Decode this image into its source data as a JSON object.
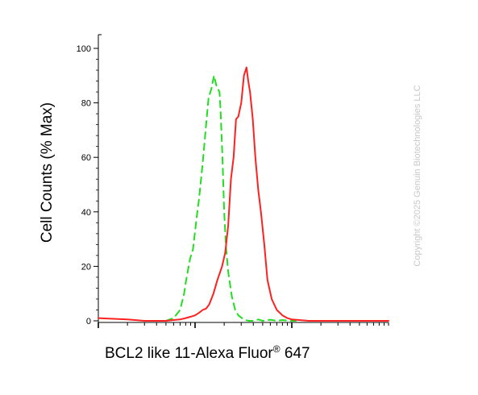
{
  "chart_data": {
    "type": "line",
    "title": "",
    "xlabel": "BCL2 like 11-Alexa Fluor",
    "xlabel_sup": "®",
    "xlabel_tail": " 647",
    "ylabel": "Cell Counts (% Max)",
    "x_scale": "log",
    "ylim": [
      0,
      100
    ],
    "y_ticks": [
      "0",
      "20",
      "40",
      "60",
      "80",
      "100"
    ],
    "y_tick_values": [
      0,
      20,
      40,
      60,
      80,
      100
    ],
    "grid": false,
    "legend": "none",
    "series": [
      {
        "style": "dashed",
        "color": "#22dd22",
        "x": [
          5.0,
          6.0,
          7.0,
          7.7,
          8.0,
          8.9,
          9.5,
          10.4,
          11.0,
          12.0,
          13.0,
          13.8,
          14.7,
          15.7,
          16.7,
          17.9,
          18.3,
          19.2,
          20.0,
          20.9,
          22.0,
          24.0,
          26.0,
          28.0,
          30.5,
          33.0,
          36.0,
          40.0,
          45.0,
          50.0,
          60.0,
          70.0,
          80.0,
          95.0,
          110.0
        ],
        "y": [
          0,
          1,
          4,
          10,
          14,
          23,
          26,
          38,
          45,
          58,
          72,
          82,
          85,
          90,
          86,
          84,
          78,
          60,
          40,
          27,
          18,
          9,
          4,
          2,
          1,
          0.3,
          0,
          0,
          0.5,
          0,
          0.4,
          0,
          0.3,
          0,
          0
        ]
      },
      {
        "style": "solid",
        "color": "#ff2020",
        "x": [
          1.0,
          2.0,
          3.0,
          4.0,
          5.0,
          6.0,
          7.0,
          8.0,
          9.0,
          10.0,
          11.0,
          12.0,
          13.0,
          14.0,
          15.5,
          17.0,
          19.0,
          20.5,
          22.0,
          23.5,
          25.0,
          26.5,
          28.0,
          30.0,
          32.0,
          34.0,
          35.5,
          37.0,
          39.5,
          42.0,
          45.0,
          48.0,
          52.0,
          56.0,
          62.0,
          70.0,
          80.0,
          90.0,
          100.0,
          150.0,
          200.0,
          500.0,
          1000.0
        ],
        "y": [
          1,
          0.5,
          0,
          0,
          0,
          0.3,
          0.5,
          1,
          1.5,
          2,
          3,
          4,
          4.5,
          6,
          10,
          15,
          20,
          25,
          35,
          52,
          60,
          74,
          75,
          80,
          90,
          93,
          88,
          84,
          74,
          60,
          48,
          40,
          28,
          15,
          8,
          4,
          2,
          1,
          0.5,
          0,
          0,
          0,
          0
        ]
      }
    ]
  },
  "watermark": "Copyright ©2025 Genuin Biotechnologies LLC"
}
